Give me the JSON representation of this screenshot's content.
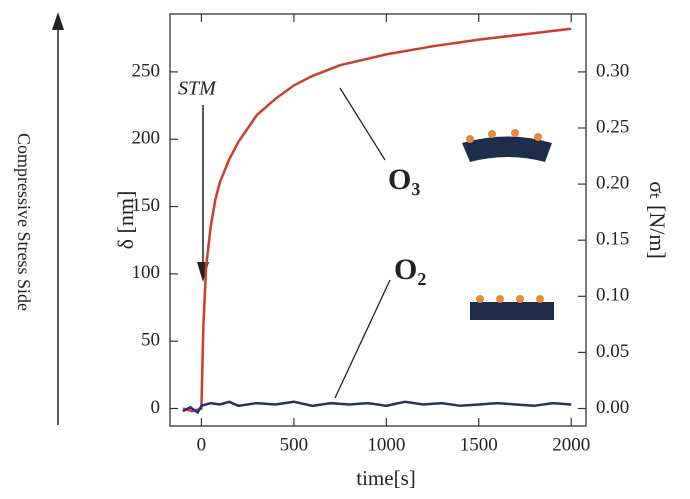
{
  "chart_data": {
    "type": "line",
    "xlabel": "time[s]",
    "ylabel": "δ [nm]",
    "y2label": "σₜ [N/m]",
    "side_label": "Compressive Stress Side",
    "annotations": [
      "STM"
    ],
    "xlim": [
      -170,
      2080
    ],
    "xticks": [
      0,
      500,
      1000,
      1500,
      2000
    ],
    "ylim": [
      -13,
      293
    ],
    "yticks": [
      0,
      50,
      100,
      150,
      200,
      250
    ],
    "y2lim": [
      -0.0156,
      0.3516
    ],
    "y2ticks": [
      {
        "value": 0,
        "label": "0.00"
      },
      {
        "value": 0.05,
        "label": "0.05"
      },
      {
        "value": 0.1,
        "label": "0.10"
      },
      {
        "value": 0.15,
        "label": "0.15"
      },
      {
        "value": 0.2,
        "label": "0.20"
      },
      {
        "value": 0.25,
        "label": "0.25"
      },
      {
        "value": 0.3,
        "label": "0.30"
      }
    ],
    "series": [
      {
        "name": "O₃",
        "color": "#c8402c",
        "x": [
          -100,
          -50,
          0,
          10,
          25,
          50,
          75,
          100,
          150,
          200,
          300,
          400,
          500,
          600,
          750,
          1000,
          1250,
          1500,
          1750,
          2000
        ],
        "values": [
          0,
          -2,
          0,
          60,
          105,
          135,
          155,
          168,
          185,
          198,
          218,
          230,
          240,
          247,
          255,
          263,
          269,
          274,
          278,
          282
        ]
      },
      {
        "name": "O₂",
        "color": "#2a2f6a",
        "x": [
          -100,
          -60,
          -20,
          0,
          50,
          100,
          150,
          200,
          300,
          400,
          500,
          600,
          700,
          800,
          900,
          1000,
          1100,
          1200,
          1300,
          1400,
          1500,
          1600,
          1700,
          1800,
          1900,
          2000
        ],
        "values": [
          -2,
          1,
          -3,
          2,
          4,
          3,
          5,
          2,
          4,
          3,
          5,
          2,
          4,
          3,
          4,
          2,
          5,
          3,
          4,
          2,
          3,
          4,
          3,
          2,
          4,
          3
        ]
      }
    ]
  }
}
